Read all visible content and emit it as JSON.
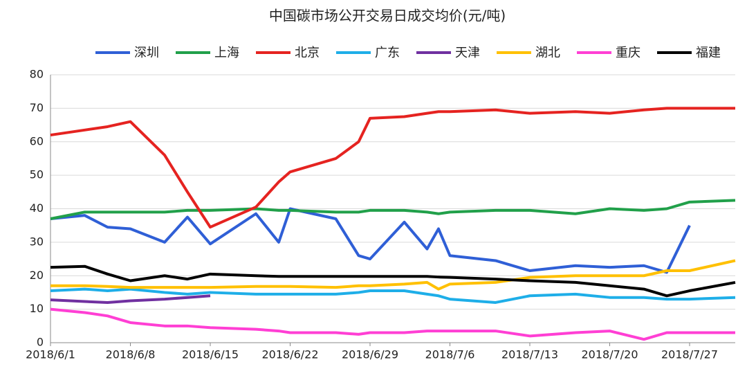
{
  "chart_data": {
    "type": "line",
    "title": "中国碳市场公开交易日成交均价(元/吨)",
    "x": [
      "2018/6/1",
      "2018/6/4",
      "2018/6/6",
      "2018/6/8",
      "2018/6/11",
      "2018/6/13",
      "2018/6/15",
      "2018/6/19",
      "2018/6/21",
      "2018/6/22",
      "2018/6/26",
      "2018/6/28",
      "2018/6/29",
      "2018/7/2",
      "2018/7/4",
      "2018/7/5",
      "2018/7/6",
      "2018/7/10",
      "2018/7/13",
      "2018/7/17",
      "2018/7/20",
      "2018/7/23",
      "2018/7/25",
      "2018/7/27",
      "2018/7/31"
    ],
    "series": [
      {
        "name": "深圳",
        "color": "#2f5fd6",
        "values": [
          37,
          38,
          34.5,
          34,
          30,
          37.5,
          29.5,
          38.5,
          30,
          40,
          37,
          26,
          25,
          36,
          28,
          34,
          26,
          24.5,
          21.5,
          23,
          22.5,
          23,
          21,
          35,
          null
        ]
      },
      {
        "name": "上海",
        "color": "#21a04a",
        "values": [
          37,
          39,
          39,
          39,
          39,
          39.5,
          39.5,
          40,
          39.5,
          39.5,
          39,
          39,
          39.5,
          39.5,
          39,
          38.5,
          39,
          39.5,
          39.5,
          38.5,
          40,
          39.5,
          40,
          42,
          42.5
        ]
      },
      {
        "name": "北京",
        "color": "#e52320",
        "values": [
          62,
          63.5,
          64.5,
          66,
          56,
          45,
          34.5,
          40.5,
          48,
          51,
          55,
          60,
          67,
          67.5,
          68.5,
          69,
          69,
          69.5,
          68.5,
          69,
          68.5,
          69.5,
          70,
          70,
          70
        ]
      },
      {
        "name": "广东",
        "color": "#1eaee8",
        "values": [
          15.5,
          16,
          15.5,
          16,
          15,
          14.5,
          15,
          14.5,
          14.5,
          14.5,
          14.5,
          15,
          15.5,
          15.5,
          14.5,
          14,
          13,
          12,
          14,
          14.5,
          13.5,
          13.5,
          13,
          13,
          13.5
        ]
      },
      {
        "name": "天津",
        "color": "#7030a0",
        "values": [
          12.8,
          12.3,
          12,
          12.5,
          13,
          13.5,
          14,
          null,
          null,
          null,
          null,
          null,
          null,
          null,
          null,
          null,
          null,
          null,
          null,
          null,
          null,
          null,
          null,
          null,
          null
        ]
      },
      {
        "name": "湖北",
        "color": "#ffc000",
        "values": [
          17,
          17,
          16.8,
          16.5,
          16.5,
          16.5,
          16.5,
          16.8,
          16.8,
          16.8,
          16.5,
          17,
          17,
          17.5,
          18,
          16,
          17.5,
          18,
          19.5,
          20,
          20,
          20,
          21.5,
          21.5,
          24.5
        ]
      },
      {
        "name": "重庆",
        "color": "#ff3fd4",
        "values": [
          10,
          9,
          8,
          6,
          5,
          5,
          4.5,
          4,
          3.5,
          3,
          3,
          2.5,
          3,
          3,
          3.5,
          3.5,
          3.5,
          3.5,
          2,
          3,
          3.5,
          1,
          3,
          3,
          3
        ]
      },
      {
        "name": "福建",
        "color": "#000000",
        "values": [
          22.5,
          22.8,
          20.5,
          18.5,
          20,
          19,
          20.5,
          20,
          19.8,
          19.8,
          19.8,
          19.8,
          19.8,
          19.8,
          19.8,
          19.6,
          19.5,
          19,
          18.5,
          18,
          17,
          16,
          14,
          15.5,
          18
        ]
      }
    ],
    "xlim": [
      "2018/6/1",
      "2018/7/31"
    ],
    "xticks": [
      "2018/6/1",
      "2018/6/8",
      "2018/6/15",
      "2018/6/22",
      "2018/6/29",
      "2018/7/6",
      "2018/7/13",
      "2018/7/20",
      "2018/7/27"
    ],
    "ylim": [
      0,
      80
    ],
    "yticks": [
      0,
      10,
      20,
      30,
      40,
      50,
      60,
      70,
      80
    ],
    "grid": true
  }
}
